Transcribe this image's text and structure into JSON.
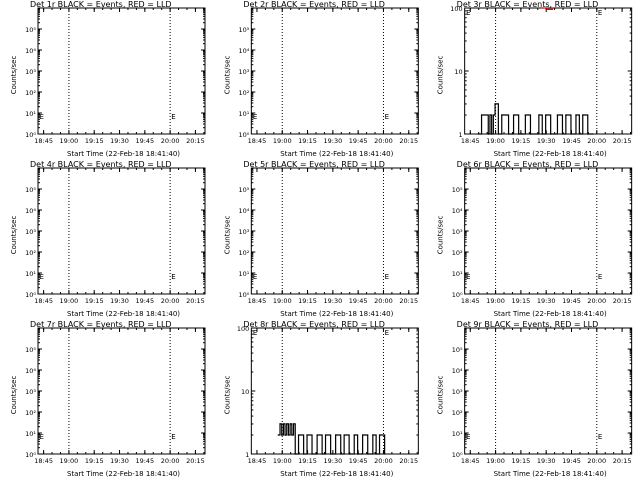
{
  "figure": {
    "x_axis_label": "Start Time (22-Feb-18 18:41:40)",
    "y_axis_label": "Counts/sec",
    "marker_label": "E",
    "colors": {
      "events": "#000000",
      "lld": "#ff0000",
      "axes": "#000000",
      "background": "#ffffff"
    }
  },
  "chart_data": [
    {
      "type": "line",
      "title": "Det 1r BLACK = Events, RED = LLD",
      "xlabel": "Start Time (22-Feb-18 18:41:40)",
      "ylabel": "Counts/sec",
      "x_ticks": [
        "18:45",
        "19:00",
        "19:15",
        "19:30",
        "19:45",
        "20:00",
        "20:15"
      ],
      "y_scale": "log",
      "y_ticks": [
        "10⁰",
        "10¹",
        "10²",
        "10³",
        "10⁴",
        "10⁵"
      ],
      "ylim": [
        1,
        1000000
      ],
      "xlim_minutes": [
        0,
        99
      ],
      "dotted_lines_minutes": [
        18.33,
        78.33
      ],
      "marker_minutes": [
        0.3,
        78.4
      ],
      "series": []
    },
    {
      "type": "line",
      "title": "Det 2r BLACK = Events, RED = LLD",
      "xlabel": "Start Time (22-Feb-18 18:41:40)",
      "ylabel": "Counts/sec",
      "x_ticks": [
        "18:45",
        "19:00",
        "19:15",
        "19:30",
        "19:45",
        "20:00",
        "20:15"
      ],
      "y_scale": "log",
      "y_ticks": [
        "10⁰",
        "10¹",
        "10²",
        "10³",
        "10⁴",
        "10⁵"
      ],
      "ylim": [
        1,
        1000000
      ],
      "xlim_minutes": [
        0,
        99
      ],
      "dotted_lines_minutes": [
        18.33,
        78.33
      ],
      "marker_minutes": [
        0.3,
        78.4
      ],
      "series": []
    },
    {
      "type": "line",
      "title": "Det 3r BLACK = Events, RED = LLD",
      "xlabel": "Start Time (22-Feb-18 18:41:40)",
      "ylabel": "Counts/sec",
      "x_ticks": [
        "18:45",
        "19:00",
        "19:15",
        "19:30",
        "19:45",
        "20:00",
        "20:15"
      ],
      "y_scale": "log",
      "y_ticks": [
        "1",
        "10",
        "100"
      ],
      "ylim": [
        1,
        100
      ],
      "xlim_minutes": [
        0,
        99
      ],
      "dotted_lines_minutes": [
        18.33,
        78.33
      ],
      "marker_minutes": [
        0.3,
        78.4
      ],
      "series": [
        {
          "color": "#000000",
          "x": [
            8,
            10,
            14,
            15,
            16,
            17,
            18,
            20,
            22,
            26,
            29,
            32,
            34,
            36,
            39,
            44,
            46,
            48,
            51,
            55,
            58,
            60,
            63,
            66,
            68,
            70,
            73,
            76
          ],
          "y": [
            1,
            2,
            1,
            2,
            1,
            2,
            3,
            1,
            2,
            1,
            2,
            1,
            1,
            2,
            1,
            2,
            1,
            2,
            1,
            2,
            1,
            2,
            1,
            2,
            1,
            2,
            1,
            1
          ]
        },
        {
          "color": "#ff0000",
          "x": [
            46,
            49,
            52
          ],
          "y": [
            100,
            95,
            100
          ]
        }
      ]
    },
    {
      "type": "line",
      "title": "Det 4r BLACK = Events, RED = LLD",
      "xlabel": "Start Time (22-Feb-18 18:41:40)",
      "ylabel": "Counts/sec",
      "x_ticks": [
        "18:45",
        "19:00",
        "19:15",
        "19:30",
        "19:45",
        "20:00",
        "20:15"
      ],
      "y_scale": "log",
      "y_ticks": [
        "10⁰",
        "10¹",
        "10²",
        "10³",
        "10⁴",
        "10⁵"
      ],
      "ylim": [
        1,
        1000000
      ],
      "xlim_minutes": [
        0,
        99
      ],
      "dotted_lines_minutes": [
        18.33,
        78.33
      ],
      "marker_minutes": [
        0.3,
        78.4
      ],
      "series": []
    },
    {
      "type": "line",
      "title": "Det 5r BLACK = Events, RED = LLD",
      "xlabel": "Start Time (22-Feb-18 18:41:40)",
      "ylabel": "Counts/sec",
      "x_ticks": [
        "18:45",
        "19:00",
        "19:15",
        "19:30",
        "19:45",
        "20:00",
        "20:15"
      ],
      "y_scale": "log",
      "y_ticks": [
        "10⁰",
        "10¹",
        "10²",
        "10³",
        "10⁴",
        "10⁵"
      ],
      "ylim": [
        1,
        1000000
      ],
      "xlim_minutes": [
        0,
        99
      ],
      "dotted_lines_minutes": [
        18.33,
        78.33
      ],
      "marker_minutes": [
        0.3,
        78.4
      ],
      "series": []
    },
    {
      "type": "line",
      "title": "Det 6r BLACK = Events, RED = LLD",
      "xlabel": "Start Time (22-Feb-18 18:41:40)",
      "ylabel": "Counts/sec",
      "x_ticks": [
        "18:45",
        "19:00",
        "19:15",
        "19:30",
        "19:45",
        "20:00",
        "20:15"
      ],
      "y_scale": "log",
      "y_ticks": [
        "10⁰",
        "10¹",
        "10²",
        "10³",
        "10⁴",
        "10⁵"
      ],
      "ylim": [
        1,
        1000000
      ],
      "xlim_minutes": [
        0,
        99
      ],
      "dotted_lines_minutes": [
        18.33,
        78.33
      ],
      "marker_minutes": [
        0.3,
        78.4
      ],
      "series": []
    },
    {
      "type": "line",
      "title": "Det 7r BLACK = Events, RED = LLD",
      "xlabel": "Start Time (22-Feb-18 18:41:40)",
      "ylabel": "Counts/sec",
      "x_ticks": [
        "18:45",
        "19:00",
        "19:15",
        "19:30",
        "19:45",
        "20:00",
        "20:15"
      ],
      "y_scale": "log",
      "y_ticks": [
        "10⁰",
        "10¹",
        "10²",
        "10³",
        "10⁴",
        "10⁵"
      ],
      "ylim": [
        1,
        1000000
      ],
      "xlim_minutes": [
        0,
        99
      ],
      "dotted_lines_minutes": [
        18.33,
        78.33
      ],
      "marker_minutes": [
        0.3,
        78.4
      ],
      "series": []
    },
    {
      "type": "line",
      "title": "Det 8r BLACK = Events, RED = LLD",
      "xlabel": "Start Time (22-Feb-18 18:41:40)",
      "ylabel": "Counts/sec",
      "x_ticks": [
        "18:45",
        "19:00",
        "19:15",
        "19:30",
        "19:45",
        "20:00",
        "20:15"
      ],
      "y_scale": "log",
      "y_ticks": [
        "1",
        "10",
        "100"
      ],
      "ylim": [
        1,
        100
      ],
      "xlim_minutes": [
        0,
        99
      ],
      "dotted_lines_minutes": [
        18.33,
        78.33
      ],
      "marker_minutes": [
        0.3,
        78.4
      ],
      "series": [
        {
          "color": "#000000",
          "x": [
            16,
            17,
            18,
            19,
            20,
            21,
            22,
            23,
            24,
            25,
            26,
            28,
            31,
            33,
            36,
            39,
            42,
            44,
            47,
            50,
            53,
            55,
            58,
            61,
            63,
            66,
            69,
            72,
            74,
            76,
            79
          ],
          "y": [
            2,
            3,
            2,
            3,
            2,
            3,
            2,
            3,
            2,
            3,
            1,
            2,
            1,
            2,
            1,
            2,
            1,
            2,
            1,
            2,
            1,
            2,
            1,
            2,
            1,
            2,
            1,
            2,
            1,
            2,
            1
          ]
        }
      ]
    },
    {
      "type": "line",
      "title": "Det 9r BLACK = Events, RED = LLD",
      "xlabel": "Start Time (22-Feb-18 18:41:40)",
      "ylabel": "Counts/sec",
      "x_ticks": [
        "18:45",
        "19:00",
        "19:15",
        "19:30",
        "19:45",
        "20:00",
        "20:15"
      ],
      "y_scale": "log",
      "y_ticks": [
        "10⁰",
        "10¹",
        "10²",
        "10³",
        "10⁴",
        "10⁵"
      ],
      "ylim": [
        1,
        1000000
      ],
      "xlim_minutes": [
        0,
        99
      ],
      "dotted_lines_minutes": [
        18.33,
        78.33
      ],
      "marker_minutes": [
        0.3,
        78.4
      ],
      "series": []
    }
  ]
}
